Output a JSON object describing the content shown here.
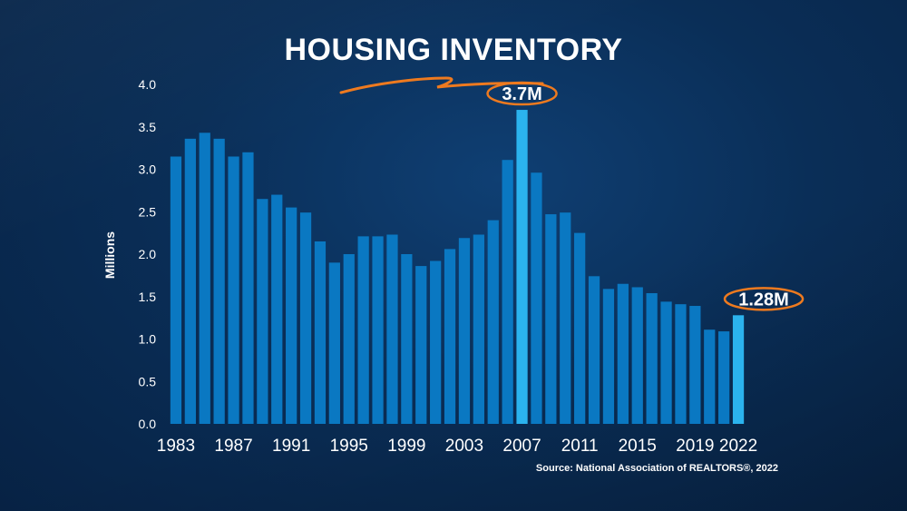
{
  "chart_data": {
    "type": "bar",
    "title": "HOUSING INVENTORY",
    "ylabel": "Millions",
    "xlabel": "",
    "ylim": [
      0,
      4.0
    ],
    "yticks": [
      "0.0",
      "0.5",
      "1.0",
      "1.5",
      "2.0",
      "2.5",
      "3.0",
      "3.5",
      "4.0"
    ],
    "xtick_labels": [
      "1983",
      "1987",
      "1991",
      "1995",
      "1999",
      "2003",
      "2007",
      "2011",
      "2015",
      "2019",
      "2022"
    ],
    "categories": [
      "1983",
      "1984",
      "1985",
      "1986",
      "1987",
      "1988",
      "1989",
      "1990",
      "1991",
      "1992",
      "1993",
      "1994",
      "1995",
      "1996",
      "1997",
      "1998",
      "1999",
      "2000",
      "2001",
      "2002",
      "2003",
      "2004",
      "2005",
      "2006",
      "2007",
      "2008",
      "2009",
      "2010",
      "2011",
      "2012",
      "2013",
      "2014",
      "2015",
      "2016",
      "2017",
      "2018",
      "2019",
      "2020",
      "2021",
      "2022"
    ],
    "values": [
      3.15,
      3.36,
      3.43,
      3.36,
      3.15,
      3.2,
      2.65,
      2.7,
      2.55,
      2.49,
      2.15,
      1.9,
      2.0,
      2.21,
      2.21,
      2.23,
      2.0,
      1.86,
      1.92,
      2.06,
      2.19,
      2.23,
      2.4,
      3.11,
      3.7,
      2.96,
      2.47,
      2.49,
      2.25,
      1.74,
      1.59,
      1.65,
      1.61,
      1.54,
      1.44,
      1.41,
      1.39,
      1.11,
      1.09,
      1.28
    ],
    "grid": false,
    "highlights": [
      {
        "category": "2007",
        "label": "3.7M"
      },
      {
        "category": "2022",
        "label": "1.28M"
      }
    ],
    "source": "Source: National Association of REALTORS®, 2022"
  },
  "colors": {
    "bar": "#0a78c2",
    "bar_highlight": "#2bb3ee",
    "accent": "#ee7a1f",
    "text": "#ffffff",
    "background": "#0b2f59"
  }
}
